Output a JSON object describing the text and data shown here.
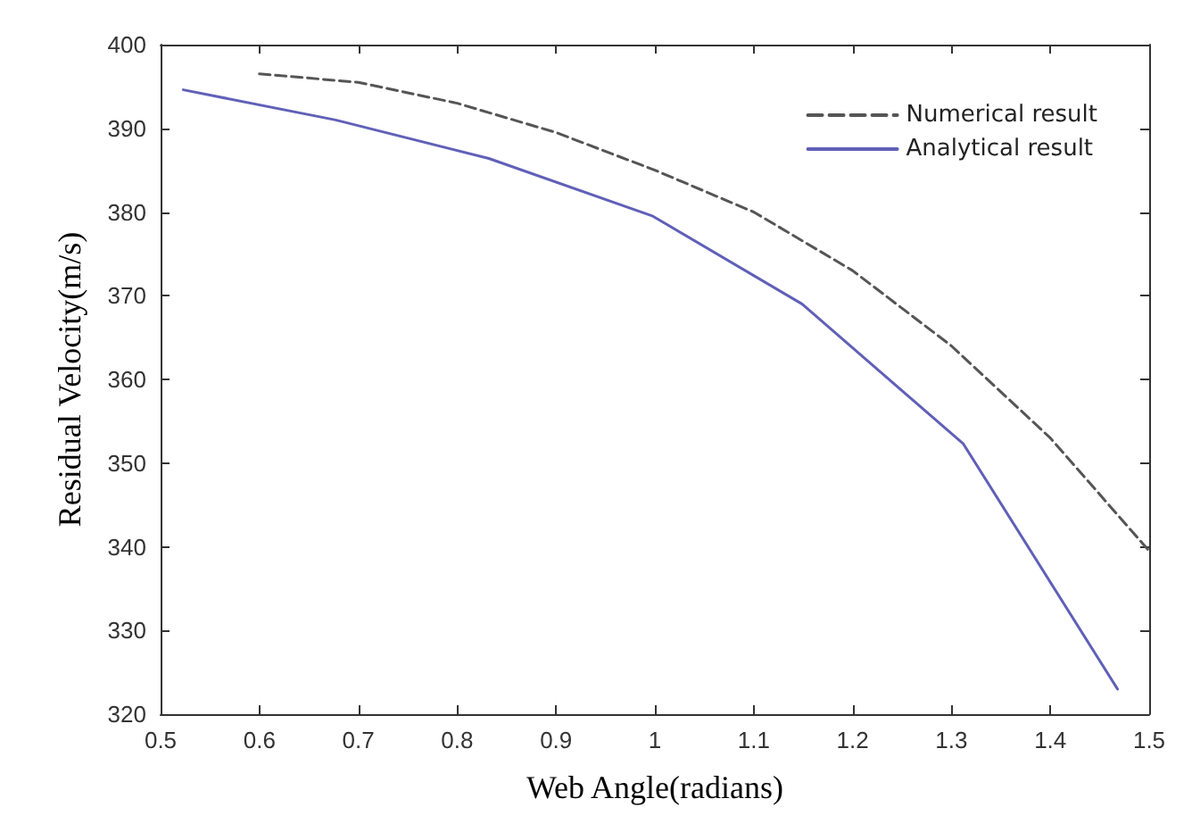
{
  "chart_data": {
    "type": "line",
    "xlabel": "Web Angle(radians)",
    "ylabel": "Residual Velocity(m/s)",
    "xlim": [
      0.5,
      1.5
    ],
    "xticks": [
      0.5,
      0.6,
      0.7,
      0.8,
      0.9,
      1,
      1.1,
      1.2,
      1.3,
      1.4,
      1.5
    ],
    "ylim": [
      320,
      400
    ],
    "yticks": [
      320,
      330,
      340,
      350,
      360,
      370,
      380,
      390,
      400
    ],
    "grid": false,
    "legend": "top right",
    "marker": "none",
    "series": [
      {
        "name": "Numerical result",
        "color": "#555555",
        "line_style": "dashed",
        "x": [
          0.6,
          0.7,
          0.8,
          0.9,
          1.0,
          1.1,
          1.2,
          1.3,
          1.4,
          1.5
        ],
        "values": [
          396.5,
          395.5,
          393,
          389.5,
          385,
          380,
          373,
          364,
          353,
          339.5
        ]
      },
      {
        "name": "Analytical result",
        "color": "#6060b8",
        "line_style": "solid",
        "x": [
          0.523,
          0.677,
          0.832,
          0.998,
          1.149,
          1.312,
          1.468
        ],
        "values": [
          394.6,
          391,
          386.4,
          379.5,
          369,
          352.3,
          323
        ]
      }
    ]
  }
}
